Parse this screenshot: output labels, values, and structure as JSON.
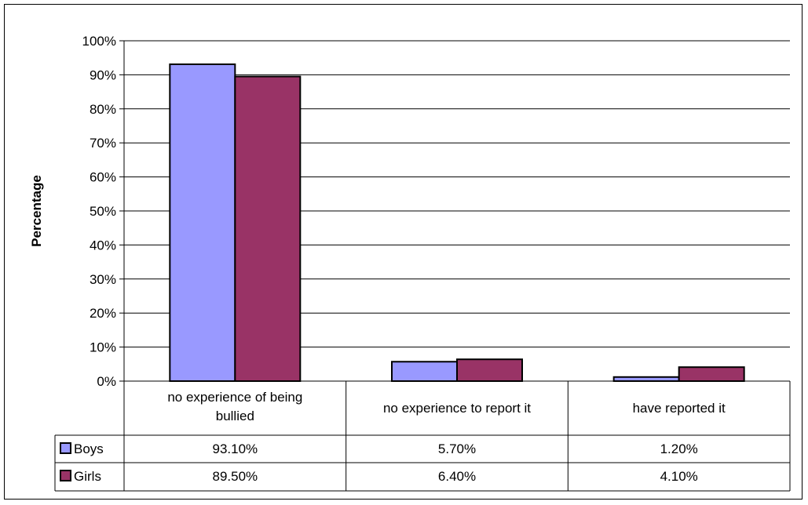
{
  "chart_data": {
    "type": "bar",
    "title": "",
    "ylabel": "Percentage",
    "xlabel": "",
    "ylim": [
      0,
      100
    ],
    "yticks": [
      "0%",
      "10%",
      "20%",
      "30%",
      "40%",
      "50%",
      "60%",
      "70%",
      "80%",
      "90%",
      "100%"
    ],
    "categories": [
      [
        "no experience of being",
        "bullied"
      ],
      [
        "no experience to report it"
      ],
      [
        "have reported it"
      ]
    ],
    "series": [
      {
        "name": "Boys",
        "color": "#9999ff",
        "values": [
          93.1,
          5.7,
          1.2
        ],
        "labels": [
          "93.10%",
          "5.70%",
          "1.20%"
        ]
      },
      {
        "name": "Girls",
        "color": "#993366",
        "values": [
          89.5,
          6.4,
          4.1
        ],
        "labels": [
          "89.50%",
          "6.40%",
          "4.10%"
        ]
      }
    ],
    "grid": true,
    "legend": "data-table"
  }
}
